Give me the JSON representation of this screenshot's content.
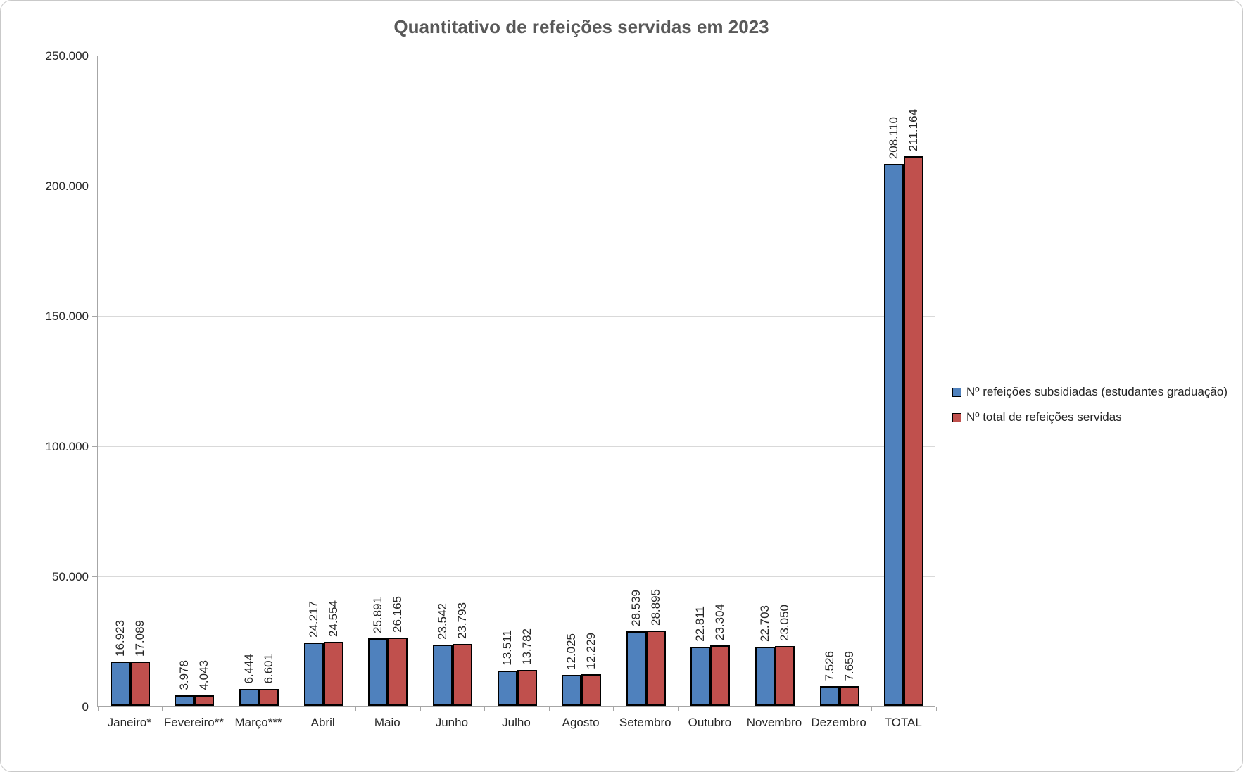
{
  "title": "Quantitativo de refeições servidas em 2023",
  "colors": {
    "series1": "#4F81BD",
    "series2": "#C0504D",
    "bar_border": "#000000",
    "title_text": "#595959",
    "gridline": "#D9D9D9",
    "axis_line": "#A6A6A6",
    "tick_text": "#262626"
  },
  "chart_data": {
    "type": "bar",
    "title": "Quantitativo de refeições servidas em 2023",
    "categories": [
      "Janeiro*",
      "Fevereiro**",
      "Março***",
      "Abril",
      "Maio",
      "Junho",
      "Julho",
      "Agosto",
      "Setembro",
      "Outubro",
      "Novembro",
      "Dezembro",
      "TOTAL"
    ],
    "series": [
      {
        "name": "Nº refeições subsidiadas (estudantes graduação)",
        "color": "#4F81BD",
        "values": [
          16923,
          3978,
          6444,
          24217,
          25891,
          23542,
          13511,
          12025,
          28539,
          22811,
          22703,
          7526,
          208110
        ],
        "data_labels": [
          "16.923",
          "3.978",
          "6.444",
          "24.217",
          "25.891",
          "23.542",
          "13.511",
          "12.025",
          "28.539",
          "22.811",
          "22.703",
          "7.526",
          "208.110"
        ]
      },
      {
        "name": "Nº total de refeições servidas",
        "color": "#C0504D",
        "values": [
          17089,
          4043,
          6601,
          24554,
          26165,
          23793,
          13782,
          12229,
          28895,
          23304,
          23050,
          7659,
          211164
        ],
        "data_labels": [
          "17.089",
          "4.043",
          "6.601",
          "24.554",
          "26.165",
          "23.793",
          "13.782",
          "12.229",
          "28.895",
          "23.304",
          "23.050",
          "7.659",
          "211.164"
        ]
      }
    ],
    "xlabel": "",
    "ylabel": "",
    "ylim": [
      0,
      250000
    ],
    "ytick_interval": 50000,
    "ytick_labels": [
      "0",
      "50.000",
      "100.000",
      "150.000",
      "200.000",
      "250.000"
    ],
    "grid": true,
    "data_label_rotation": 90,
    "legend_position": "right"
  }
}
